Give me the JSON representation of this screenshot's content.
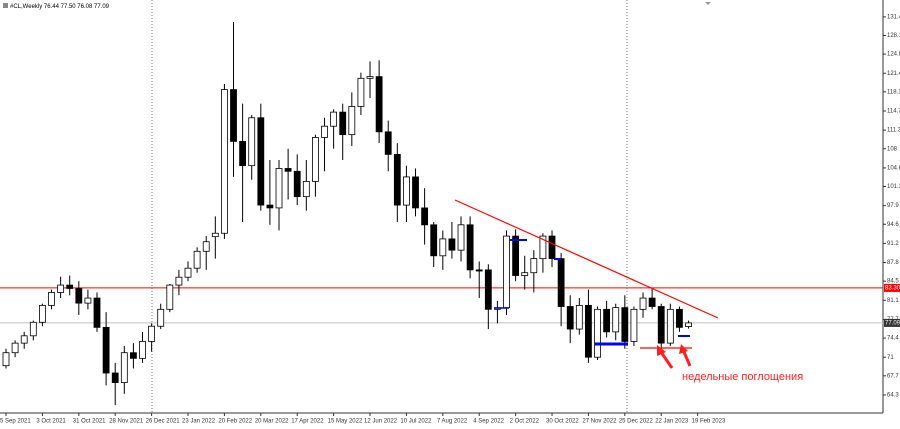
{
  "chart_data": {
    "type": "candlestick",
    "header": {
      "symbol": "#CL,Weekly",
      "open": "76.44",
      "high": "77.50",
      "low": "76.08",
      "close": "77.09"
    },
    "annotation": "недельные поглощения",
    "up_color": "#ffffff",
    "down_color": "#000000",
    "open": [
      69.5,
      71.8,
      73.5,
      74.8,
      77.2,
      80.2,
      82.5,
      83.8,
      83.2,
      80.6,
      81.5,
      76.3,
      68.2,
      66.5,
      71.8,
      70.8,
      73.8,
      76.5,
      79.5,
      83.8,
      85.2,
      86.8,
      89.8,
      92.4,
      93,
      118.5,
      109.3,
      105,
      113.5,
      98,
      97.5,
      104.5,
      104,
      99.5,
      102.2,
      110,
      112,
      114.5,
      110.5,
      115.5,
      120.5,
      120.8,
      111,
      107,
      98,
      103,
      97.5,
      94.5,
      89,
      92,
      90,
      94.5,
      86.5,
      86.5,
      79.5,
      79.8,
      92.5,
      85.5,
      86,
      88.5,
      92.5,
      88.5,
      80,
      76,
      80.2,
      71,
      79.5,
      75.5,
      79.8,
      73.8,
      79.5,
      81.5,
      80,
      73.5,
      79.5,
      76.44
    ],
    "high": [
      72.5,
      74,
      75.5,
      77.5,
      80.5,
      83,
      85.3,
      85.5,
      84.5,
      83,
      82.5,
      79,
      70,
      73,
      73.5,
      75.5,
      77,
      80.5,
      84,
      86.5,
      88,
      90.5,
      92.5,
      96,
      119.5,
      130.5,
      116,
      114,
      116,
      106,
      106,
      108,
      107,
      106,
      110.5,
      113.5,
      115,
      116,
      118,
      121.5,
      123.5,
      123.7,
      113,
      109,
      105,
      104.5,
      101,
      95,
      93.5,
      95,
      96,
      96,
      88,
      87.5,
      81,
      93.5,
      93.7,
      89,
      90,
      93,
      93.5,
      89.5,
      82,
      81.5,
      83,
      80,
      81,
      80.5,
      82,
      80,
      82.5,
      83.3,
      80.5,
      80.5,
      80,
      77.5
    ],
    "low": [
      69,
      71,
      72.5,
      74,
      76.5,
      79.5,
      81.5,
      82,
      78.5,
      79.5,
      75.5,
      66,
      62.5,
      64.5,
      69,
      70,
      72,
      76,
      79,
      82,
      84.5,
      86,
      86.5,
      88.5,
      92,
      103,
      95,
      102.5,
      97,
      94.5,
      93.5,
      99,
      98,
      97,
      99.5,
      104,
      108,
      106,
      108.5,
      114,
      117,
      109,
      104,
      95,
      95,
      96,
      91,
      87,
      86.5,
      88.5,
      88,
      85,
      81.5,
      76,
      77,
      78.5,
      84.5,
      83,
      82.5,
      86,
      87,
      76.5,
      73.5,
      75,
      70,
      70.5,
      74.5,
      74,
      72.5,
      73,
      78,
      79.5,
      72.5,
      73,
      75.5,
      76.08
    ],
    "close": [
      71.8,
      73.5,
      74.8,
      77.2,
      80.2,
      82.5,
      83.8,
      83.2,
      80.6,
      81.5,
      76.3,
      68.2,
      66.5,
      71.8,
      70.8,
      73.8,
      76.5,
      79.5,
      83.8,
      85.2,
      86.8,
      89.8,
      91.5,
      93,
      118.5,
      109.3,
      105,
      113.5,
      98,
      97.5,
      104.5,
      104,
      99.5,
      102.2,
      110,
      112,
      114.5,
      110.5,
      115.5,
      120.5,
      120.8,
      111,
      107,
      98,
      103,
      97.5,
      94.5,
      89,
      92,
      90,
      94.5,
      86.5,
      86.3,
      79.5,
      79.8,
      92.5,
      85.5,
      86,
      88.5,
      92.5,
      88.5,
      80,
      76,
      80.2,
      71,
      79.5,
      75.5,
      79.8,
      73.8,
      79.5,
      81.5,
      80,
      73.5,
      79.5,
      76.3,
      77.09
    ],
    "xlim": [
      -0.66,
      96.37
    ],
    "xticks": [
      {
        "value": 0,
        "label": "5 Sep 2021"
      },
      {
        "value": 4,
        "label": "3 Oct 2021"
      },
      {
        "value": 8,
        "label": "31 Oct 2021"
      },
      {
        "value": 12,
        "label": "28 Nov 2021"
      },
      {
        "value": 16,
        "label": "26 Dec 2021"
      },
      {
        "value": 20,
        "label": "23 Jan 2022"
      },
      {
        "value": 24,
        "label": "20 Feb 2022"
      },
      {
        "value": 28,
        "label": "20 Mar 2022"
      },
      {
        "value": 32,
        "label": "17 Apr 2022"
      },
      {
        "value": 36,
        "label": "15 May 2022"
      },
      {
        "value": 40,
        "label": "12 Jun 2022"
      },
      {
        "value": 44,
        "label": "10 Jul 2022"
      },
      {
        "value": 48,
        "label": "7 Aug 2022"
      },
      {
        "value": 52,
        "label": "4 Sep 2022"
      },
      {
        "value": 56,
        "label": "2 Oct 2022"
      },
      {
        "value": 60,
        "label": "30 Oct 2022"
      },
      {
        "value": 64,
        "label": "27 Nov 2022"
      },
      {
        "value": 68,
        "label": "25 Dec 2022"
      },
      {
        "value": 72,
        "label": "22 Jan 2023"
      },
      {
        "value": 76,
        "label": "19 Feb 2023"
      }
    ],
    "ylim": [
      61.1,
      134.4
    ],
    "yticks": [
      131.4,
      128.1,
      124.8,
      121.4,
      118.1,
      114.7,
      111.3,
      108,
      104.6,
      101.3,
      97.9,
      94.6,
      91.2,
      87.8,
      84.5,
      81.1,
      77.7,
      74.4,
      71,
      67.7,
      64.3
    ],
    "hline": {
      "value": 83.3,
      "label": "83.30",
      "color": "#ff0000"
    },
    "price_line": {
      "value": 77.09,
      "label": "77.09",
      "color": "#c0c0c0"
    }
  }
}
